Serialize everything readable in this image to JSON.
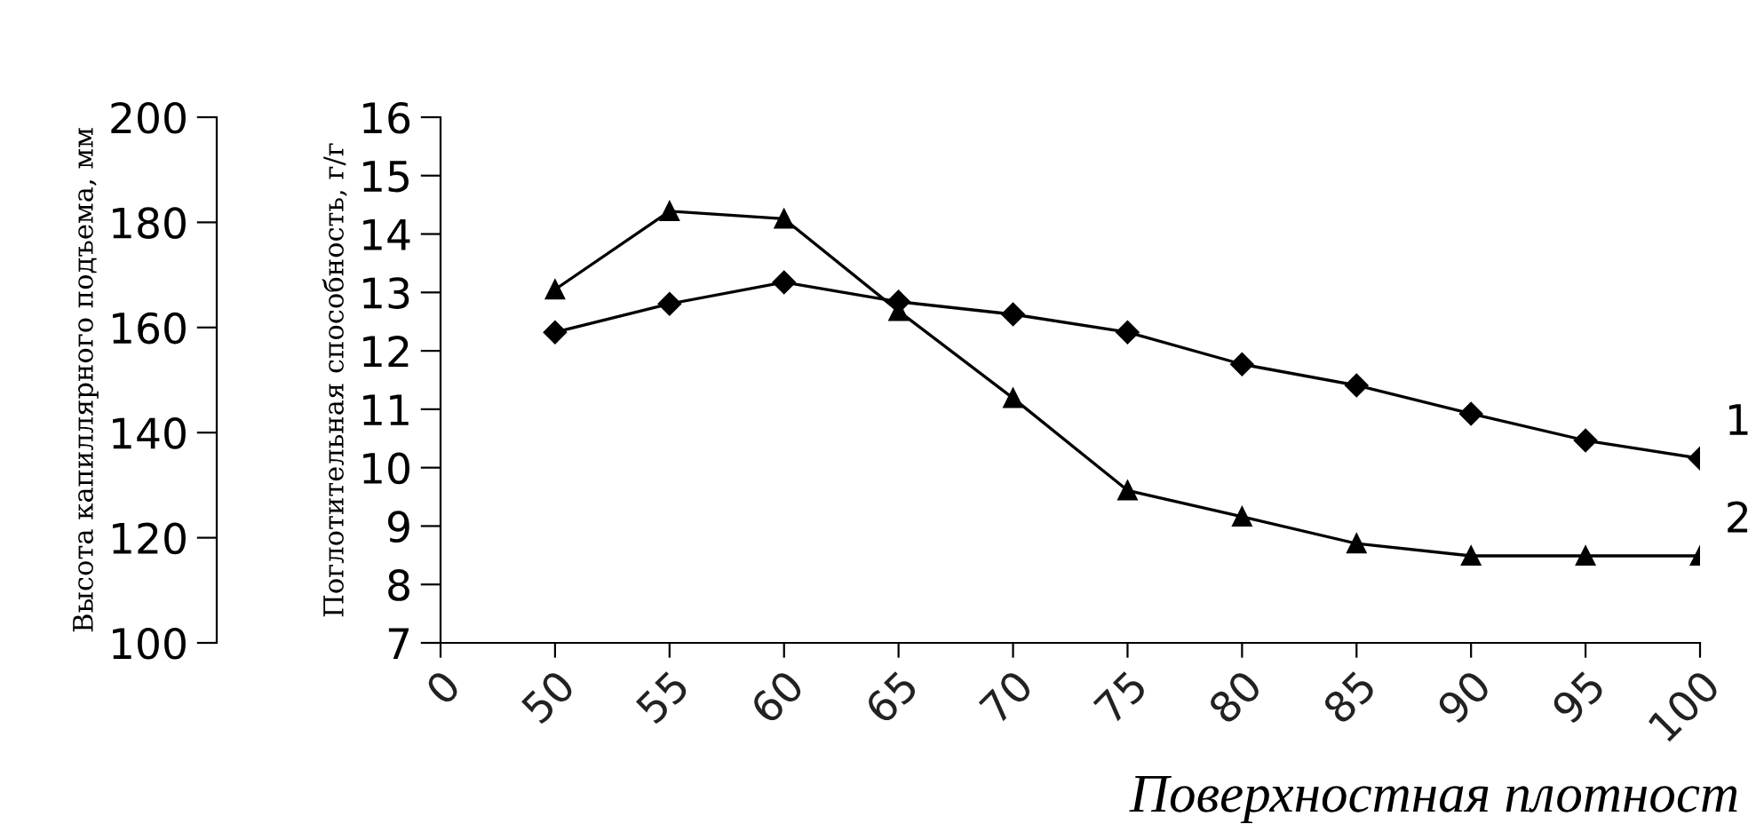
{
  "chart_data": {
    "type": "line",
    "xlabel": "Поверхностная плотност",
    "ylabel": "Поглотительная способность, г/г",
    "y2label": "Высота капиллярного подъема, мм",
    "categories": [
      "0",
      "50",
      "55",
      "60",
      "65",
      "70",
      "75",
      "80",
      "85",
      "90",
      "95",
      "100"
    ],
    "ylim": [
      7,
      16
    ],
    "yticks": [
      7,
      8,
      9,
      10,
      11,
      12,
      13,
      14,
      15,
      16
    ],
    "y2lim": [
      100,
      200
    ],
    "y2ticks": [
      100,
      120,
      140,
      160,
      180,
      200
    ],
    "grid": false,
    "legend": "right",
    "series": [
      {
        "name": "1",
        "color": "#000000",
        "marker": "diamond",
        "axis": "y2",
        "values": [
          null,
          159.1,
          164.5,
          168.6,
          164.9,
          162.5,
          159.1,
          153,
          149,
          143.6,
          138.5,
          135.1
        ]
      },
      {
        "name": "2",
        "color": "#000000",
        "marker": "triangle",
        "values": [
          null,
          13.05,
          14.39,
          14.26,
          12.68,
          11.19,
          9.61,
          9.16,
          8.7,
          8.49,
          8.49,
          8.49
        ]
      }
    ]
  }
}
